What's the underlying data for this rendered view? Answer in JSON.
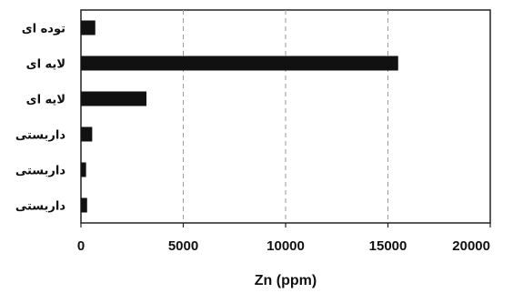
{
  "chart_data": {
    "type": "bar",
    "orientation": "horizontal",
    "categories": [
      "توده ای",
      "لایه ای",
      "لایه ای",
      "داربستی",
      "داربستی",
      "داربستی"
    ],
    "values": [
      700,
      15500,
      3200,
      550,
      250,
      300
    ],
    "xlabel": "Zn (ppm)",
    "xlim": [
      0,
      20000
    ],
    "xticks": [
      0,
      5000,
      10000,
      15000,
      20000
    ],
    "grid": "vertical dashed at 5000, 10000, 15000",
    "legend": "none",
    "bar_color": "#111111",
    "plot_border": true
  }
}
